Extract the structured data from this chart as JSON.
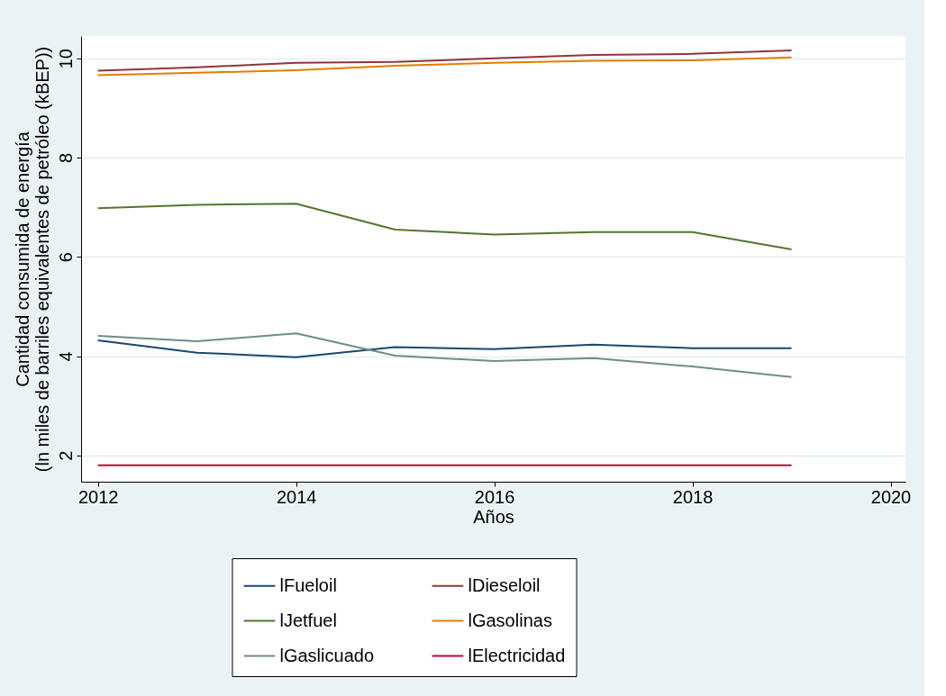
{
  "chart_data": {
    "type": "line",
    "xlabel": "Años",
    "ylabel": "Cantidad consumida de energía\n(ln miles de barriles equivalentes de petróleo (kBEP))",
    "x": [
      2012,
      2013,
      2014,
      2015,
      2016,
      2017,
      2018,
      2019
    ],
    "xlim": [
      2011.83,
      2020.15
    ],
    "xticks": [
      2012,
      2014,
      2016,
      2018,
      2020
    ],
    "ylim": [
      1.47,
      10.45
    ],
    "yticks": [
      2,
      4,
      6,
      8,
      10
    ],
    "grid": "y",
    "legend": "bottom",
    "marker": "none",
    "line_style": "solid",
    "series": [
      {
        "name": "lFueloil",
        "color": "#1a476f",
        "values": [
          4.32,
          4.07,
          3.98,
          4.18,
          4.14,
          4.23,
          4.16,
          4.16
        ]
      },
      {
        "name": "lDieseloil",
        "color": "#90353b",
        "values": [
          9.75,
          9.82,
          9.91,
          9.93,
          10.0,
          10.07,
          10.09,
          10.16
        ]
      },
      {
        "name": "lJetfuel",
        "color": "#55752f",
        "values": [
          6.98,
          7.05,
          7.07,
          6.55,
          6.45,
          6.5,
          6.5,
          6.15
        ]
      },
      {
        "name": "lGasolinas",
        "color": "#e37e00",
        "values": [
          9.66,
          9.71,
          9.76,
          9.85,
          9.91,
          9.95,
          9.96,
          10.02
        ]
      },
      {
        "name": "lGaslicuado",
        "color": "#6e8e84",
        "values": [
          4.41,
          4.3,
          4.46,
          4.01,
          3.9,
          3.96,
          3.79,
          3.58
        ]
      },
      {
        "name": "lElectricidad",
        "color": "#c10534",
        "values": [
          1.8,
          1.8,
          1.8,
          1.8,
          1.8,
          1.8,
          1.8,
          1.8
        ]
      }
    ]
  }
}
